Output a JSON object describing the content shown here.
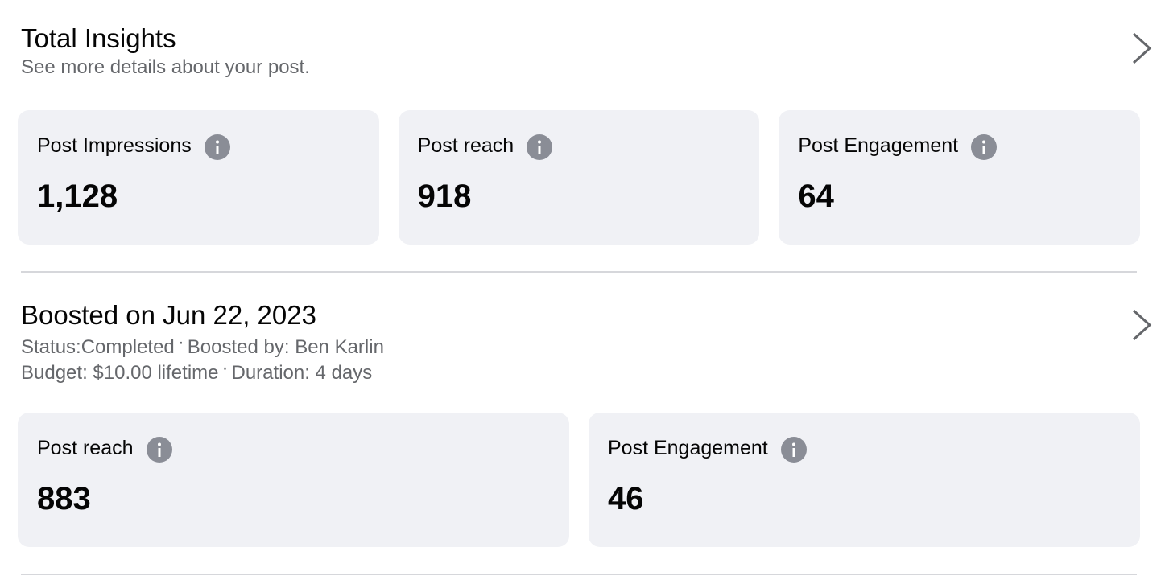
{
  "total": {
    "title": "Total Insights",
    "subtitle": "See more details about your post.",
    "cards": [
      {
        "label": "Post Impressions",
        "value": "1,128"
      },
      {
        "label": "Post reach",
        "value": "918"
      },
      {
        "label": "Post Engagement",
        "value": "64"
      }
    ]
  },
  "boost": {
    "title": "Boosted on Jun 22, 2023",
    "status_label": "Status:",
    "status": "Completed",
    "boosted_by": "Boosted by: Ben Karlin",
    "budget": "Budget: $10.00 lifetime",
    "duration": "Duration: 4 days",
    "separator": "·",
    "cards": [
      {
        "label": "Post reach",
        "value": "883"
      },
      {
        "label": "Post Engagement",
        "value": "46"
      }
    ]
  },
  "icons": {
    "info": "info-icon",
    "chevron": "chevron-right-icon"
  },
  "colors": {
    "card_bg": "#f0f1f5",
    "info_icon": "#8a8d96",
    "secondary_text": "#65676b"
  }
}
